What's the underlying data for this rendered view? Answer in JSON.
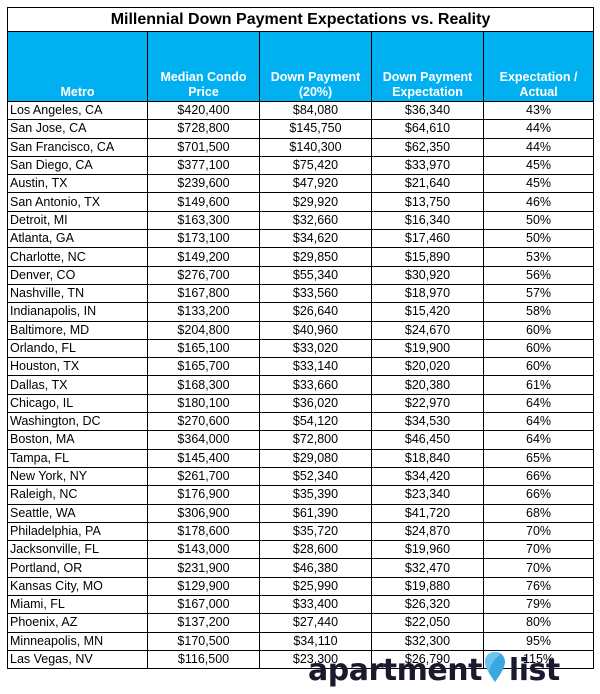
{
  "title": "Millennial Down Payment Expectations vs. Reality",
  "headers": {
    "metro": "Metro",
    "price": "Median Condo Price",
    "down": "Down Payment (20%)",
    "expect": "Down Payment Expectation",
    "ratio": "Expectation / Actual"
  },
  "rows": [
    [
      "Los Angeles, CA",
      "$420,400",
      "$84,080",
      "$36,340",
      "43%"
    ],
    [
      "San Jose, CA",
      "$728,800",
      "$145,750",
      "$64,610",
      "44%"
    ],
    [
      "San Francisco, CA",
      "$701,500",
      "$140,300",
      "$62,350",
      "44%"
    ],
    [
      "San Diego, CA",
      "$377,100",
      "$75,420",
      "$33,970",
      "45%"
    ],
    [
      "Austin, TX",
      "$239,600",
      "$47,920",
      "$21,640",
      "45%"
    ],
    [
      "San Antonio, TX",
      "$149,600",
      "$29,920",
      "$13,750",
      "46%"
    ],
    [
      "Detroit, MI",
      "$163,300",
      "$32,660",
      "$16,340",
      "50%"
    ],
    [
      "Atlanta, GA",
      "$173,100",
      "$34,620",
      "$17,460",
      "50%"
    ],
    [
      "Charlotte, NC",
      "$149,200",
      "$29,850",
      "$15,890",
      "53%"
    ],
    [
      "Denver, CO",
      "$276,700",
      "$55,340",
      "$30,920",
      "56%"
    ],
    [
      "Nashville, TN",
      "$167,800",
      "$33,560",
      "$18,970",
      "57%"
    ],
    [
      "Indianapolis, IN",
      "$133,200",
      "$26,640",
      "$15,420",
      "58%"
    ],
    [
      "Baltimore, MD",
      "$204,800",
      "$40,960",
      "$24,670",
      "60%"
    ],
    [
      "Orlando, FL",
      "$165,100",
      "$33,020",
      "$19,900",
      "60%"
    ],
    [
      "Houston, TX",
      "$165,700",
      "$33,140",
      "$20,020",
      "60%"
    ],
    [
      "Dallas, TX",
      "$168,300",
      "$33,660",
      "$20,380",
      "61%"
    ],
    [
      "Chicago, IL",
      "$180,100",
      "$36,020",
      "$22,970",
      "64%"
    ],
    [
      "Washington, DC",
      "$270,600",
      "$54,120",
      "$34,530",
      "64%"
    ],
    [
      "Boston, MA",
      "$364,000",
      "$72,800",
      "$46,450",
      "64%"
    ],
    [
      "Tampa, FL",
      "$145,400",
      "$29,080",
      "$18,840",
      "65%"
    ],
    [
      "New York, NY",
      "$261,700",
      "$52,340",
      "$34,420",
      "66%"
    ],
    [
      "Raleigh, NC",
      "$176,900",
      "$35,390",
      "$23,340",
      "66%"
    ],
    [
      "Seattle, WA",
      "$306,900",
      "$61,390",
      "$41,720",
      "68%"
    ],
    [
      "Philadelphia, PA",
      "$178,600",
      "$35,720",
      "$24,870",
      "70%"
    ],
    [
      "Jacksonville, FL",
      "$143,000",
      "$28,600",
      "$19,960",
      "70%"
    ],
    [
      "Portland, OR",
      "$231,900",
      "$46,380",
      "$32,470",
      "70%"
    ],
    [
      "Kansas City, MO",
      "$129,900",
      "$25,990",
      "$19,880",
      "76%"
    ],
    [
      "Miami, FL",
      "$167,000",
      "$33,400",
      "$26,320",
      "79%"
    ],
    [
      "Phoenix, AZ",
      "$137,200",
      "$27,440",
      "$22,050",
      "80%"
    ],
    [
      "Minneapolis, MN",
      "$170,500",
      "$34,110",
      "$32,300",
      "95%"
    ],
    [
      "Las Vegas, NV",
      "$116,500",
      "$23,300",
      "$26,790",
      "115%"
    ]
  ],
  "logo": {
    "word1": "apartment",
    "word2": "list",
    "pin_color": "#3aa8e0",
    "text_color": "#1a1a2e",
    "header_color": "#00b0f0"
  }
}
